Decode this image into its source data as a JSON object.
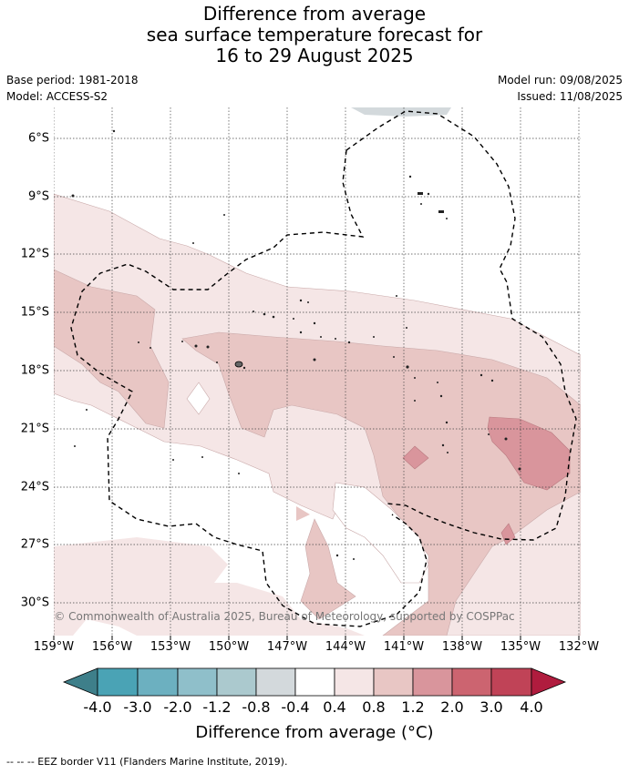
{
  "title": {
    "line1": "Difference from average",
    "line2": "sea surface temperature forecast for",
    "line3": "16 to 29 August 2025"
  },
  "meta": {
    "base_period": "Base period: 1981-2018",
    "model": "Model: ACCESS-S2",
    "model_run": "Model run: 09/08/2025",
    "issued": "Issued: 11/08/2025"
  },
  "map": {
    "lat_labels": [
      "6°S",
      "9°S",
      "12°S",
      "15°S",
      "18°S",
      "21°S",
      "24°S",
      "27°S",
      "30°S"
    ],
    "lon_labels": [
      "159°W",
      "156°W",
      "153°W",
      "150°W",
      "147°W",
      "144°W",
      "141°W",
      "138°W",
      "135°W",
      "132°W"
    ],
    "copyright": "© Commonwealth of Australia 2025, Bureau of Meteorology, supported by COSPPac"
  },
  "colorbar": {
    "labels": [
      "-4.0",
      "-3.0",
      "-2.0",
      "-1.2",
      "-0.8",
      "-0.4",
      "0.4",
      "0.8",
      "1.2",
      "2.0",
      "3.0",
      "4.0"
    ],
    "colors": [
      "#3e7f8a",
      "#4aa3b5",
      "#6cb0c0",
      "#8fbfca",
      "#abc9ce",
      "#d3d9dc",
      "#ffffff",
      "#f5e6e6",
      "#e8c6c4",
      "#d9959c",
      "#cc6470",
      "#c04357",
      "#b01c3e"
    ],
    "title": "Difference from average (°C)"
  },
  "footer": "--  --  -- EEZ border V11 (Flanders Marine Institute, 2019)."
}
